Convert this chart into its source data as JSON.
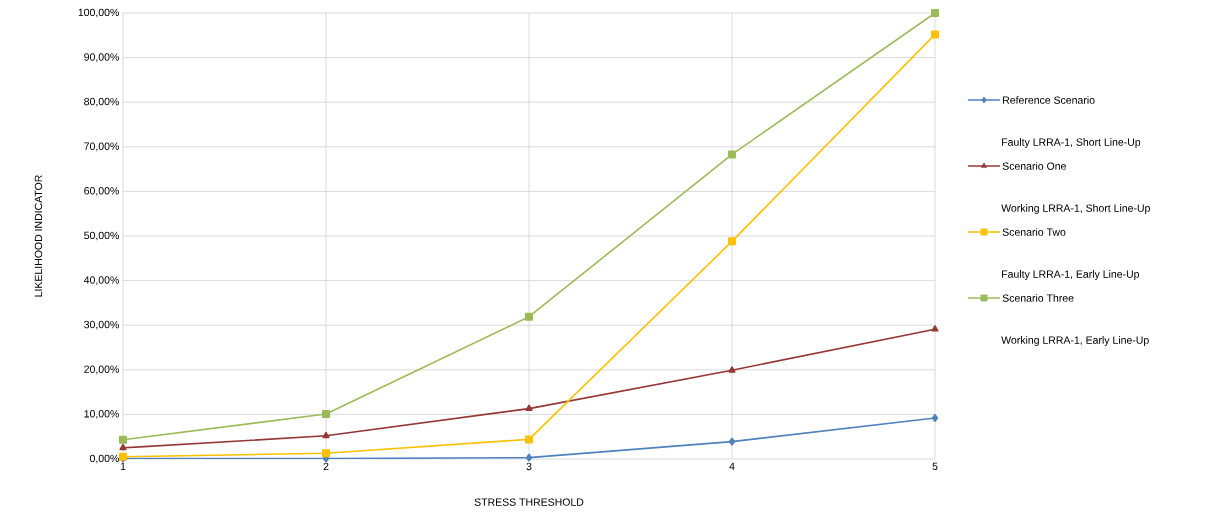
{
  "chart_data": {
    "type": "line",
    "xlabel": "STRESS THRESHOLD",
    "ylabel": "LIKELIHOOD INDICATOR",
    "x": [
      1,
      2,
      3,
      4,
      5
    ],
    "xlim": [
      1,
      5
    ],
    "xticks": [
      1,
      2,
      3,
      4,
      5
    ],
    "ylim": [
      0,
      100
    ],
    "yticks": [
      {
        "value": 0,
        "label": "0,00%"
      },
      {
        "value": 10,
        "label": "10,00%"
      },
      {
        "value": 20,
        "label": "20,00%"
      },
      {
        "value": 30,
        "label": "30,00%"
      },
      {
        "value": 40,
        "label": "40,00%"
      },
      {
        "value": 50,
        "label": "50,00%"
      },
      {
        "value": 60,
        "label": "60,00%"
      },
      {
        "value": 70,
        "label": "70,00%"
      },
      {
        "value": 80,
        "label": "80,00%"
      },
      {
        "value": 90,
        "label": "90,00%"
      },
      {
        "value": 100,
        "label": "100,00%"
      }
    ],
    "grid": true,
    "legend": "right",
    "line_style": "solid",
    "series": [
      {
        "name": "Reference Scenario",
        "color": "#4f81bd",
        "marker": "diamond",
        "values": [
          0.1,
          0.1,
          0.3,
          3.9,
          9.2
        ]
      },
      {
        "name": "Scenario One",
        "color": "#953735",
        "marker": "triangle",
        "values": [
          2.5,
          5.2,
          11.3,
          19.9,
          29.1
        ]
      },
      {
        "name": "Scenario Two",
        "color": "#ffc000",
        "marker": "square",
        "values": [
          0.5,
          1.3,
          4.4,
          48.8,
          95.2
        ]
      },
      {
        "name": "Scenario Three",
        "color": "#9bbb59",
        "marker": "square",
        "values": [
          4.3,
          10.1,
          31.9,
          68.3,
          100
        ]
      }
    ],
    "annotations": [
      "Faulty LRRA-1, Short Line-Up",
      "Working LRRA-1, Short Line-Up",
      "Faulty LRRA-1, Early Line-Up",
      "Working LRRA-1, Early Line-Up"
    ]
  }
}
